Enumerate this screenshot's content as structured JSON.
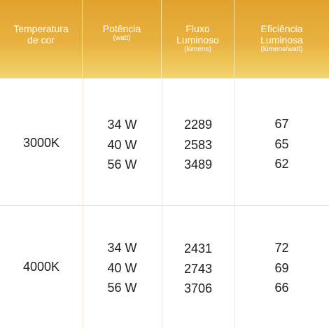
{
  "headers": {
    "temperature": {
      "line1": "Temperatura",
      "line2": "de cor"
    },
    "power": {
      "line1": "Potência",
      "unit": "(watt)"
    },
    "flux": {
      "line1": "Fluxo",
      "line2": "Luminoso",
      "unit": "(lúmens)"
    },
    "efficiency": {
      "line1": "Eficiência",
      "line2": "Luminosa",
      "unit": "(lúmens/watt)"
    }
  },
  "rows": [
    {
      "temperature": "3000K",
      "power": [
        "34 W",
        "40 W",
        "56 W"
      ],
      "flux": [
        "2289",
        "2583",
        "3489"
      ],
      "efficiency": [
        "67",
        "65",
        "62"
      ]
    },
    {
      "temperature": "4000K",
      "power": [
        "34 W",
        "40 W",
        "56 W"
      ],
      "flux": [
        "2431",
        "2743",
        "3706"
      ],
      "efficiency": [
        "72",
        "69",
        "66"
      ]
    }
  ],
  "colors": {
    "header_top": "#e2a22d",
    "header_bottom": "#f3d46e",
    "grid_line": "#f1e6c8",
    "body_text": "#1d1d1d"
  }
}
